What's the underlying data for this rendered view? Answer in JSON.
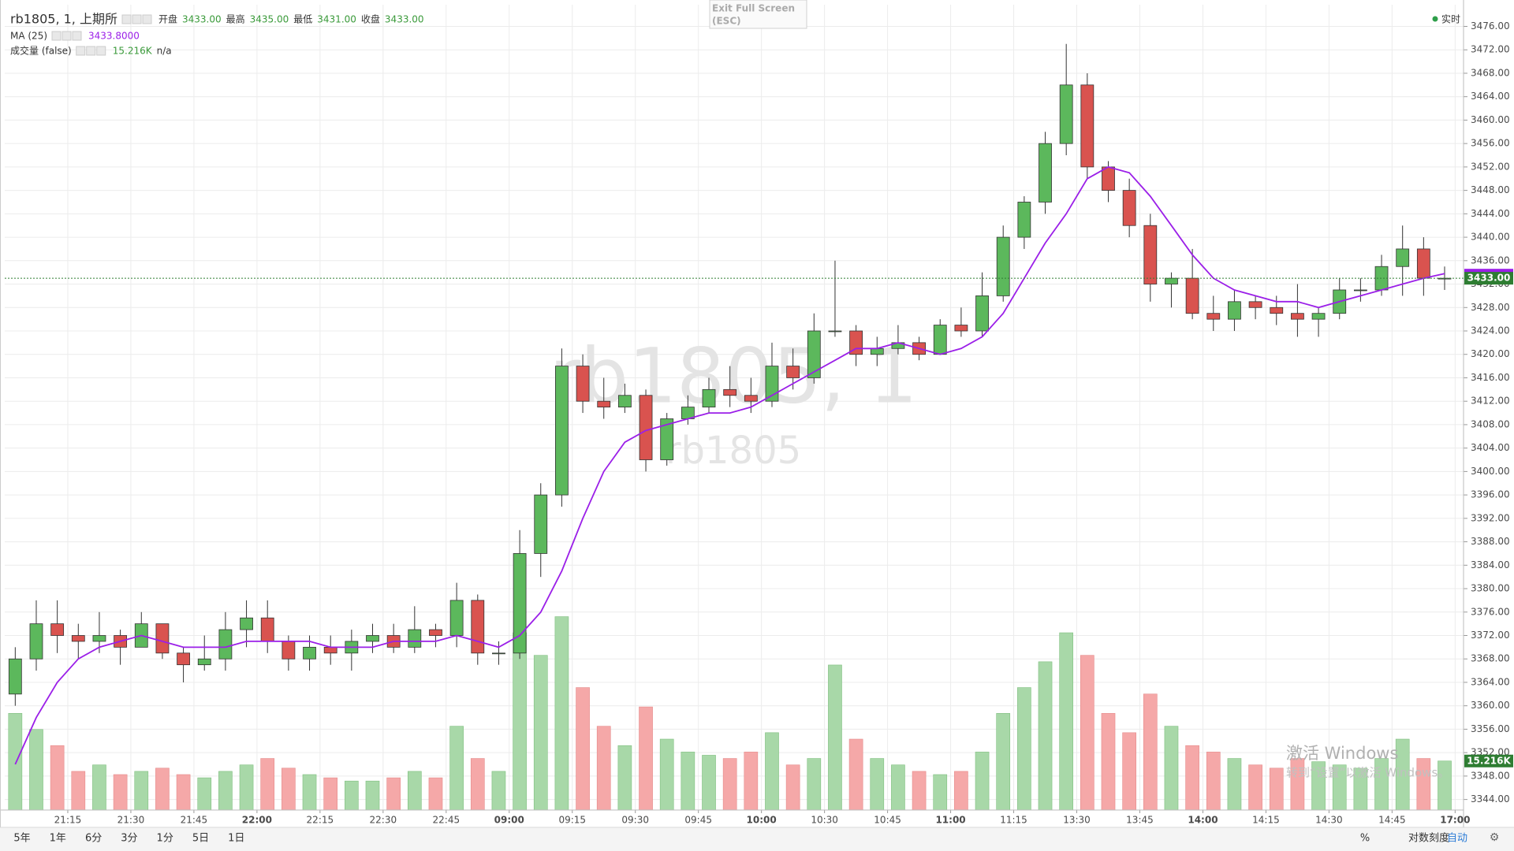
{
  "chart_data": {
    "type": "candlestick",
    "title": "rb1805, 1, 上期所",
    "ohlc_legend": [
      {
        "label": "开盘",
        "value": "3433.00"
      },
      {
        "label": "最高",
        "value": "3435.00"
      },
      {
        "label": "最低",
        "value": "3431.00"
      },
      {
        "label": "收盘",
        "value": "3433.00"
      }
    ],
    "watermark": [
      "rb1805, 1",
      "rb1805"
    ],
    "xlim": [
      0,
      69.4
    ],
    "xticks": [
      {
        "value": 3,
        "label": "21:15"
      },
      {
        "value": 6,
        "label": "21:30"
      },
      {
        "value": 9,
        "label": "21:45"
      },
      {
        "value": 12,
        "label": "22:00",
        "bold": true
      },
      {
        "value": 15,
        "label": "22:15"
      },
      {
        "value": 18,
        "label": "22:30"
      },
      {
        "value": 21,
        "label": "22:45"
      },
      {
        "value": 24,
        "label": "09:00",
        "bold": true
      },
      {
        "value": 27,
        "label": "09:15"
      },
      {
        "value": 30,
        "label": "09:30"
      },
      {
        "value": 33,
        "label": "09:45"
      },
      {
        "value": 36,
        "label": "10:00",
        "bold": true
      },
      {
        "value": 39,
        "label": "10:30"
      },
      {
        "value": 42,
        "label": "10:45"
      },
      {
        "value": 45,
        "label": "11:00",
        "bold": true
      },
      {
        "value": 48,
        "label": "11:15"
      },
      {
        "value": 51,
        "label": "13:30"
      },
      {
        "value": 54,
        "label": "13:45"
      },
      {
        "value": 57,
        "label": "14:00",
        "bold": true
      },
      {
        "value": 60,
        "label": "14:15"
      },
      {
        "value": 63,
        "label": "14:30"
      },
      {
        "value": 66,
        "label": "14:45"
      },
      {
        "value": 69,
        "label": "17:00",
        "bold": true
      }
    ],
    "ylim": [
      3342.2,
      3479.7
    ],
    "yticks": [
      {
        "value": 3344,
        "label": "3344.00"
      },
      {
        "value": 3348,
        "label": "3348.00"
      },
      {
        "value": 3352,
        "label": "3352.00"
      },
      {
        "value": 3356,
        "label": "3356.00"
      },
      {
        "value": 3360,
        "label": "3360.00"
      },
      {
        "value": 3364,
        "label": "3364.00"
      },
      {
        "value": 3368,
        "label": "3368.00"
      },
      {
        "value": 3372,
        "label": "3372.00"
      },
      {
        "value": 3376,
        "label": "3376.00"
      },
      {
        "value": 3380,
        "label": "3380.00"
      },
      {
        "value": 3384,
        "label": "3384.00"
      },
      {
        "value": 3388,
        "label": "3388.00"
      },
      {
        "value": 3392,
        "label": "3392.00"
      },
      {
        "value": 3396,
        "label": "3396.00"
      },
      {
        "value": 3400,
        "label": "3400.00"
      },
      {
        "value": 3404,
        "label": "3404.00"
      },
      {
        "value": 3408,
        "label": "3408.00"
      },
      {
        "value": 3412,
        "label": "3412.00"
      },
      {
        "value": 3416,
        "label": "3416.00"
      },
      {
        "value": 3420,
        "label": "3420.00"
      },
      {
        "value": 3424,
        "label": "3424.00"
      },
      {
        "value": 3428,
        "label": "3428.00"
      },
      {
        "value": 3432,
        "label": "3432.00"
      },
      {
        "value": 3436,
        "label": "3436.00"
      },
      {
        "value": 3440,
        "label": "3440.00"
      },
      {
        "value": 3444,
        "label": "3444.00"
      },
      {
        "value": 3448,
        "label": "3448.00"
      },
      {
        "value": 3452,
        "label": "3452.00"
      },
      {
        "value": 3456,
        "label": "3456.00"
      },
      {
        "value": 3460,
        "label": "3460.00"
      },
      {
        "value": 3464,
        "label": "3464.00"
      },
      {
        "value": 3468,
        "label": "3468.00"
      },
      {
        "value": 3472,
        "label": "3472.00"
      },
      {
        "value": 3476,
        "label": "3476.00"
      }
    ],
    "grid": true,
    "up_color": "#5cb85c",
    "down_color": "#d9534f",
    "open": [
      3362,
      3368,
      3374,
      3372,
      3371,
      3372,
      3370,
      3374,
      3369,
      3367,
      3368,
      3373,
      3375,
      3371,
      3368,
      3370,
      3369,
      3371,
      3372,
      3370,
      3373,
      3372,
      3378,
      3369,
      3369,
      3386,
      3396,
      3418,
      3412,
      3411,
      3413,
      3402,
      3409,
      3411,
      3414,
      3413,
      3412,
      3418,
      3416,
      3424,
      3424,
      3420,
      3421,
      3422,
      3420,
      3425,
      3424,
      3430,
      3440,
      3446,
      3456,
      3466,
      3452,
      3448,
      3442,
      3432,
      3433,
      3427,
      3426,
      3429,
      3428,
      3427,
      3426,
      3427,
      3431,
      3431,
      3435,
      3438,
      3433
    ],
    "high": [
      3370,
      3378,
      3378,
      3374,
      3376,
      3373,
      3376,
      3374,
      3370,
      3372,
      3376,
      3378,
      3378,
      3372,
      3372,
      3372,
      3373,
      3374,
      3374,
      3377,
      3374,
      3381,
      3379,
      3371,
      3390,
      3398,
      3421,
      3420,
      3416,
      3415,
      3414,
      3410,
      3413,
      3416,
      3418,
      3416,
      3422,
      3421,
      3427,
      3436,
      3425,
      3423,
      3425,
      3423,
      3426,
      3428,
      3434,
      3442,
      3447,
      3458,
      3473,
      3468,
      3453,
      3450,
      3444,
      3434,
      3438,
      3430,
      3431,
      3430,
      3430,
      3432,
      3428,
      3433,
      3433,
      3437,
      3442,
      3440,
      3435
    ],
    "low": [
      3360,
      3366,
      3369,
      3368,
      3369,
      3367,
      3370,
      3368,
      3364,
      3366,
      3366,
      3370,
      3369,
      3366,
      3366,
      3367,
      3366,
      3369,
      3369,
      3369,
      3370,
      3370,
      3367,
      3367,
      3368,
      3382,
      3394,
      3410,
      3409,
      3410,
      3400,
      3401,
      3408,
      3410,
      3411,
      3410,
      3411,
      3414,
      3415,
      3423,
      3418,
      3418,
      3420,
      3419,
      3420,
      3423,
      3423,
      3429,
      3438,
      3444,
      3454,
      3450,
      3446,
      3440,
      3429,
      3428,
      3426,
      3424,
      3424,
      3426,
      3425,
      3423,
      3423,
      3426,
      3429,
      3430,
      3430,
      3430,
      3431
    ],
    "close": [
      3368,
      3374,
      3372,
      3371,
      3372,
      3370,
      3374,
      3369,
      3367,
      3368,
      3373,
      3375,
      3371,
      3368,
      3370,
      3369,
      3371,
      3372,
      3370,
      3373,
      3372,
      3378,
      3369,
      3369,
      3386,
      3396,
      3418,
      3412,
      3411,
      3413,
      3402,
      3409,
      3411,
      3414,
      3413,
      3412,
      3418,
      3416,
      3424,
      3424,
      3420,
      3421,
      3422,
      3420,
      3425,
      3424,
      3430,
      3440,
      3446,
      3456,
      3466,
      3452,
      3448,
      3442,
      3432,
      3433,
      3427,
      3426,
      3429,
      3428,
      3427,
      3426,
      3427,
      3431,
      3431,
      3435,
      3438,
      3433,
      3433
    ],
    "last_price": {
      "value": 3433,
      "label": "3433.00",
      "color": "#2e7d32"
    },
    "ma": {
      "name": "MA (25)",
      "color": "#9b1fe8",
      "value_label": "3433.8000",
      "values": [
        3350,
        3358,
        3364,
        3368,
        3370,
        3371,
        3372,
        3371,
        3370,
        3370,
        3370,
        3371,
        3371,
        3371,
        3371,
        3370,
        3370,
        3370,
        3371,
        3371,
        3371,
        3372,
        3371,
        3370,
        3372,
        3376,
        3383,
        3392,
        3400,
        3405,
        3407,
        3408,
        3409,
        3410,
        3410,
        3411,
        3413,
        3415,
        3417,
        3419,
        3421,
        3421,
        3422,
        3421,
        3420,
        3421,
        3423,
        3427,
        3433,
        3439,
        3444,
        3450,
        3452,
        3451,
        3447,
        3442,
        3437,
        3433,
        3431,
        3430,
        3429,
        3429,
        3428,
        3429,
        3430,
        3431,
        3432,
        3433,
        3433.8
      ]
    },
    "volume": {
      "name": "成交量 (false)",
      "value_label": "15.216K",
      "extra": "n/a",
      "ylim": [
        0,
        100000
      ],
      "up_color": "#a8d8a8",
      "down_color": "#f5a8a8",
      "values": [
        30000,
        25000,
        20000,
        12000,
        14000,
        11000,
        12000,
        13000,
        11000,
        10000,
        12000,
        14000,
        16000,
        13000,
        11000,
        10000,
        9000,
        9000,
        10000,
        12000,
        10000,
        26000,
        16000,
        12000,
        55000,
        48000,
        60000,
        38000,
        26000,
        20000,
        32000,
        22000,
        18000,
        17000,
        16000,
        18000,
        24000,
        14000,
        16000,
        45000,
        22000,
        16000,
        14000,
        12000,
        11000,
        12000,
        18000,
        30000,
        38000,
        46000,
        55000,
        48000,
        30000,
        24000,
        36000,
        26000,
        20000,
        18000,
        16000,
        14000,
        13000,
        16000,
        15000,
        14000,
        13000,
        16000,
        22000,
        16000,
        15216
      ]
    }
  },
  "ui": {
    "exit_full_screen": "Exit Full Screen",
    "esc": "(ESC)",
    "realtime": "实时",
    "range_buttons": [
      "5年",
      "1年",
      "6分",
      "3分",
      "1分",
      "5日",
      "1日"
    ],
    "right_buttons": [
      "%",
      "对数刻度",
      "自动"
    ],
    "windows_notice": [
      "激活 Windows",
      "转到“设置”以激活 Windows。"
    ]
  }
}
